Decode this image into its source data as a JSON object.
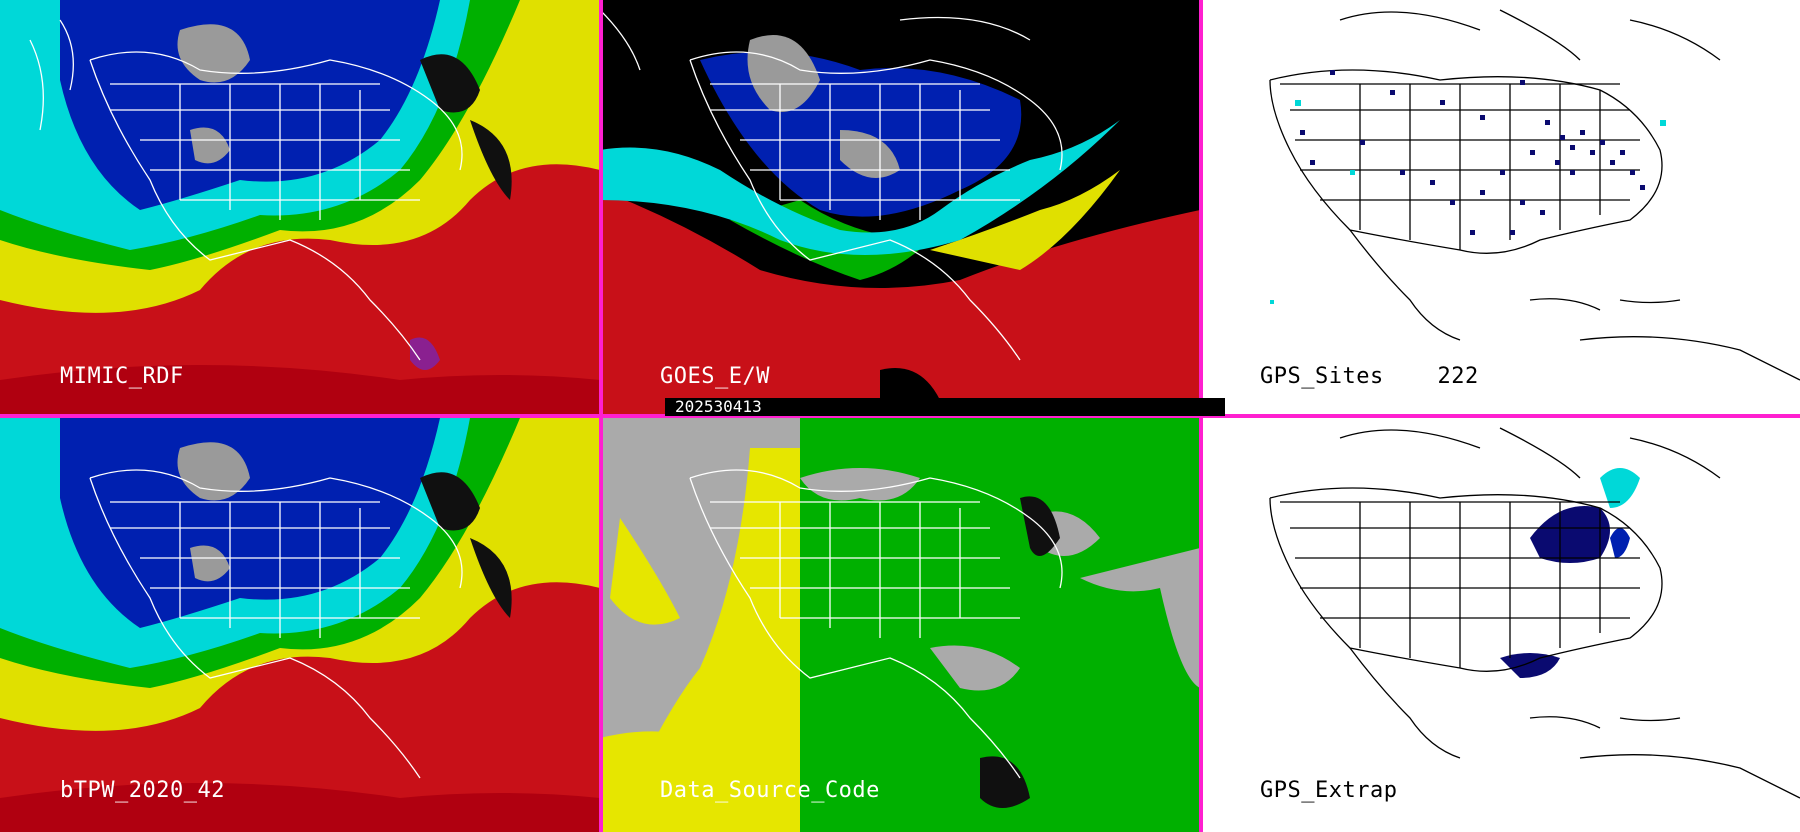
{
  "colors": {
    "divider": "#ff1fd0",
    "dry": "#c81018",
    "moist_low": "#00d8d8",
    "moist_mid": "#0020b0",
    "moist_high": "#8c8c8c",
    "source_geo": "#00b000",
    "source_polar": "#e6e600",
    "source_none": "#aaaaaa",
    "gps_site": "#0a0a70"
  },
  "panels": [
    {
      "id": "mimic-rdf",
      "label": "MIMIC_RDF",
      "style": "tpw"
    },
    {
      "id": "goes-ew",
      "label": "GOES_E/W",
      "style": "goes"
    },
    {
      "id": "gps-sites",
      "label": "GPS_Sites",
      "count": "222",
      "style": "gps"
    },
    {
      "id": "btpw",
      "label": "bTPW_2020_42",
      "style": "tpw"
    },
    {
      "id": "data-source",
      "label": "Data_Source_Code",
      "style": "source"
    },
    {
      "id": "gps-extrap",
      "label": "GPS_Extrap",
      "style": "extrap"
    }
  ],
  "date_stamp": "202530413"
}
